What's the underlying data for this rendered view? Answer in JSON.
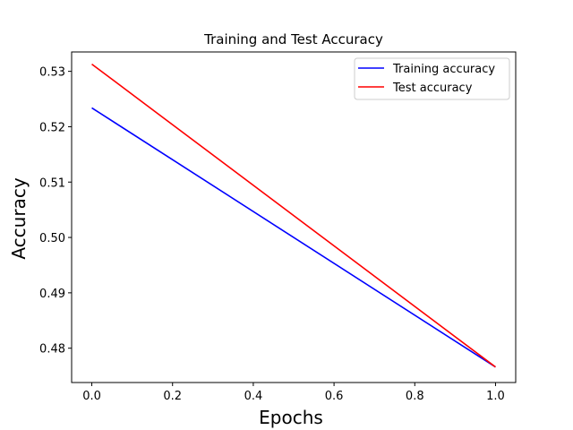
{
  "chart_data": {
    "type": "line",
    "title": "Training and Test Accuracy",
    "xlabel": "Epochs",
    "ylabel": "Accuracy",
    "xlim": [
      -0.05,
      1.05
    ],
    "ylim": [
      0.4738,
      0.5335
    ],
    "xticks": [
      0.0,
      0.2,
      0.4,
      0.6,
      0.8,
      1.0
    ],
    "xtick_labels": [
      "0.0",
      "0.2",
      "0.4",
      "0.6",
      "0.8",
      "1.0"
    ],
    "yticks": [
      0.48,
      0.49,
      0.5,
      0.51,
      0.52,
      0.53
    ],
    "ytick_labels": [
      "0.48",
      "0.49",
      "0.50",
      "0.51",
      "0.52",
      "0.53"
    ],
    "grid": false,
    "legend_position": "top-right",
    "series": [
      {
        "name": "Training accuracy",
        "color": "#0000ff",
        "x": [
          0,
          1
        ],
        "y": [
          0.5234,
          0.4766
        ]
      },
      {
        "name": "Test accuracy",
        "color": "#ff0000",
        "x": [
          0,
          1
        ],
        "y": [
          0.5313,
          0.4766
        ]
      }
    ]
  }
}
